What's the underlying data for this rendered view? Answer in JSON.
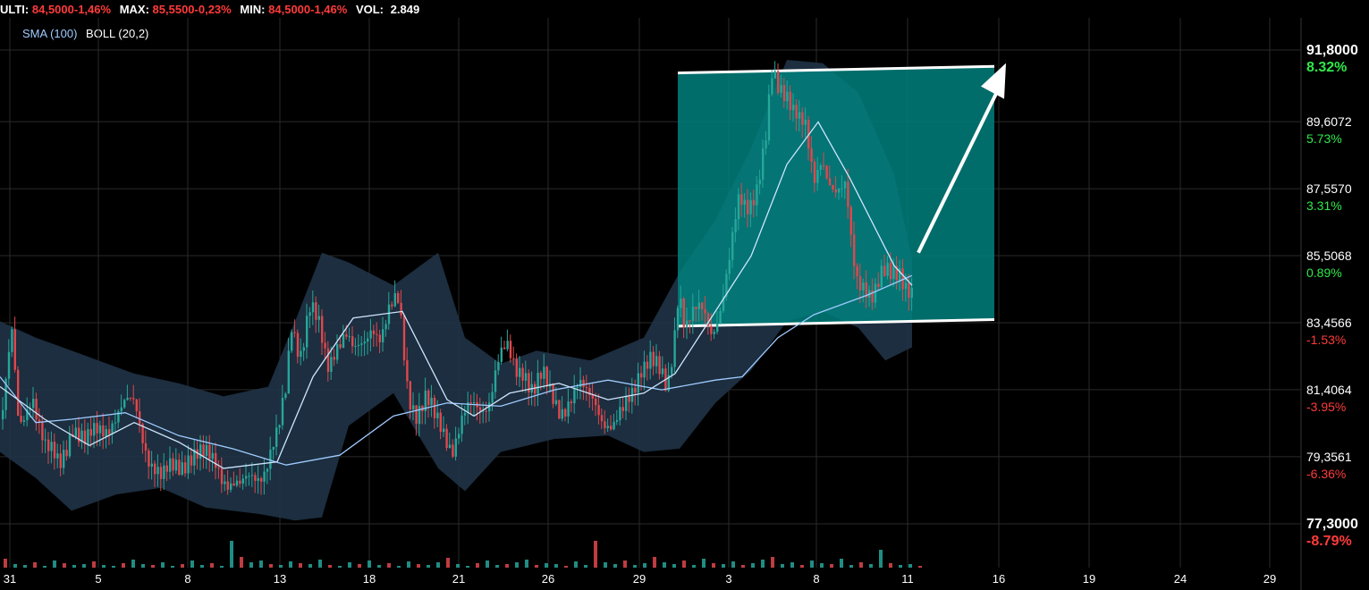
{
  "header": {
    "last_label": "ULTI:",
    "last_value": "84,5000-1,46%",
    "max_label": "MAX:",
    "max_value": "85,5500-0,23%",
    "min_label": "MIN:",
    "min_value": "84,5000-1,46%",
    "vol_label": "VOL:",
    "vol_value": "2.849"
  },
  "indicators": {
    "sma": "SMA (100)",
    "boll": "BOLL (20,2)"
  },
  "colors": {
    "background": "#000000",
    "grid": "#2a2a2a",
    "up": "#26a69a",
    "down": "#e0474c",
    "band": "#1f3346",
    "line": "#cfe6ff",
    "highlight": "#00807e",
    "pos_text": "#2ee84a",
    "neg_text": "#ff3b3b"
  },
  "chart_data": {
    "type": "candlestick",
    "ylim": [
      77.3,
      91.8
    ],
    "y_ticks": [
      {
        "price": "91,8000",
        "pct": "8.32%",
        "value": 91.8,
        "sign": "pos",
        "bold": true
      },
      {
        "price": "89,6072",
        "pct": "5.73%",
        "value": 89.6072,
        "sign": "pos",
        "bold": false
      },
      {
        "price": "87,5570",
        "pct": "3.31%",
        "value": 87.557,
        "sign": "pos",
        "bold": false
      },
      {
        "price": "85,5068",
        "pct": "0.89%",
        "value": 85.5068,
        "sign": "pos",
        "bold": false
      },
      {
        "price": "83,4566",
        "pct": "-1.53%",
        "value": 83.4566,
        "sign": "neg",
        "bold": false
      },
      {
        "price": "81,4064",
        "pct": "-3.95%",
        "value": 81.4064,
        "sign": "neg",
        "bold": false
      },
      {
        "price": "79,3561",
        "pct": "-6.36%",
        "value": 79.3561,
        "sign": "neg",
        "bold": false
      },
      {
        "price": "77,3000",
        "pct": "-8.79%",
        "value": 77.3,
        "sign": "neg",
        "bold": true
      }
    ],
    "x_ticks": [
      "31",
      "5",
      "8",
      "13",
      "18",
      "21",
      "26",
      "29",
      "3",
      "8",
      "11",
      "16",
      "19",
      "24",
      "29"
    ],
    "price_path": [
      [
        0,
        80.5
      ],
      [
        12,
        83.0
      ],
      [
        20,
        80.0
      ],
      [
        35,
        81.5
      ],
      [
        50,
        79.5
      ],
      [
        65,
        79.0
      ],
      [
        80,
        80.5
      ],
      [
        95,
        79.6
      ],
      [
        110,
        80.2
      ],
      [
        125,
        80.6
      ],
      [
        140,
        80.8
      ],
      [
        150,
        80.9
      ],
      [
        165,
        79.5
      ],
      [
        180,
        78.5
      ],
      [
        195,
        79.1
      ],
      [
        210,
        79.5
      ],
      [
        225,
        79.2
      ],
      [
        240,
        79.3
      ],
      [
        255,
        78.6
      ],
      [
        268,
        78.2
      ],
      [
        280,
        78.8
      ],
      [
        295,
        79.1
      ],
      [
        310,
        79.9
      ],
      [
        318,
        81.2
      ],
      [
        325,
        83.5
      ],
      [
        335,
        82.7
      ],
      [
        345,
        83.9
      ],
      [
        355,
        83.2
      ],
      [
        365,
        82.1
      ],
      [
        375,
        83.0
      ],
      [
        385,
        83.2
      ],
      [
        395,
        82.3
      ],
      [
        405,
        82.7
      ],
      [
        415,
        83.6
      ],
      [
        425,
        83.1
      ],
      [
        435,
        83.7
      ],
      [
        445,
        84.0
      ],
      [
        455,
        81.5
      ],
      [
        465,
        80.8
      ],
      [
        475,
        81.0
      ],
      [
        485,
        80.4
      ],
      [
        495,
        80.2
      ],
      [
        505,
        79.8
      ],
      [
        515,
        80.4
      ],
      [
        525,
        80.7
      ],
      [
        535,
        80.8
      ],
      [
        545,
        81.2
      ],
      [
        555,
        82.3
      ],
      [
        565,
        82.5
      ],
      [
        575,
        81.9
      ],
      [
        585,
        82.2
      ],
      [
        595,
        81.5
      ],
      [
        605,
        81.7
      ],
      [
        615,
        81.1
      ],
      [
        625,
        80.9
      ],
      [
        635,
        81.2
      ],
      [
        645,
        81.4
      ],
      [
        655,
        81.1
      ],
      [
        665,
        81.1
      ],
      [
        675,
        80.6
      ],
      [
        685,
        80.2
      ],
      [
        695,
        80.5
      ],
      [
        705,
        81.3
      ],
      [
        715,
        82.3
      ],
      [
        725,
        82.4
      ],
      [
        735,
        81.8
      ],
      [
        745,
        81.3
      ],
      [
        752,
        82.9
      ],
      [
        758,
        84.8
      ],
      [
        765,
        83.4
      ],
      [
        775,
        83.6
      ],
      [
        785,
        83.7
      ],
      [
        795,
        83.3
      ],
      [
        805,
        84.1
      ],
      [
        815,
        85.3
      ],
      [
        825,
        87.0
      ],
      [
        835,
        87.1
      ],
      [
        845,
        87.8
      ],
      [
        855,
        89.0
      ],
      [
        862,
        90.8
      ],
      [
        870,
        90.4
      ],
      [
        880,
        90.6
      ],
      [
        890,
        90.1
      ],
      [
        900,
        89.3
      ],
      [
        905,
        88.1
      ],
      [
        910,
        87.5
      ],
      [
        918,
        88.5
      ],
      [
        925,
        88.1
      ],
      [
        935,
        87.6
      ],
      [
        945,
        87.4
      ],
      [
        952,
        85.3
      ],
      [
        958,
        84.6
      ],
      [
        965,
        84.8
      ],
      [
        975,
        84.5
      ],
      [
        985,
        84.8
      ],
      [
        995,
        84.7
      ],
      [
        1005,
        85.1
      ],
      [
        1013,
        84.8
      ],
      [
        1020,
        84.5
      ]
    ],
    "sma_path": [
      [
        0,
        81.8
      ],
      [
        40,
        80.4
      ],
      [
        80,
        80.5
      ],
      [
        140,
        80.7
      ],
      [
        200,
        80.0
      ],
      [
        260,
        79.6
      ],
      [
        320,
        79.1
      ],
      [
        380,
        79.4
      ],
      [
        440,
        80.6
      ],
      [
        500,
        81.0
      ],
      [
        560,
        80.9
      ],
      [
        620,
        81.4
      ],
      [
        680,
        81.7
      ],
      [
        740,
        81.4
      ],
      [
        800,
        81.7
      ],
      [
        830,
        81.8
      ],
      [
        870,
        83.0
      ],
      [
        910,
        83.7
      ],
      [
        970,
        84.3
      ],
      [
        1020,
        84.9
      ]
    ],
    "boll_path": [
      [
        0,
        81.5
      ],
      [
        50,
        80.5
      ],
      [
        100,
        79.7
      ],
      [
        150,
        80.4
      ],
      [
        200,
        79.8
      ],
      [
        250,
        79.0
      ],
      [
        310,
        79.2
      ],
      [
        350,
        81.8
      ],
      [
        395,
        83.6
      ],
      [
        450,
        83.8
      ],
      [
        500,
        81.1
      ],
      [
        530,
        80.6
      ],
      [
        570,
        81.3
      ],
      [
        625,
        81.6
      ],
      [
        680,
        81.1
      ],
      [
        720,
        81.3
      ],
      [
        755,
        81.9
      ],
      [
        800,
        83.8
      ],
      [
        840,
        85.5
      ],
      [
        880,
        88.3
      ],
      [
        915,
        89.6
      ],
      [
        950,
        87.9
      ],
      [
        1000,
        85.2
      ],
      [
        1020,
        84.6
      ]
    ],
    "boll_upper": [
      [
        0,
        83.5
      ],
      [
        40,
        83.0
      ],
      [
        90,
        82.5
      ],
      [
        150,
        81.9
      ],
      [
        200,
        81.6
      ],
      [
        250,
        81.2
      ],
      [
        300,
        81.5
      ],
      [
        330,
        83.5
      ],
      [
        360,
        85.6
      ],
      [
        390,
        85.3
      ],
      [
        440,
        84.6
      ],
      [
        490,
        85.6
      ],
      [
        520,
        83.0
      ],
      [
        560,
        82.2
      ],
      [
        600,
        82.6
      ],
      [
        660,
        82.3
      ],
      [
        720,
        83.0
      ],
      [
        760,
        85.0
      ],
      [
        800,
        86.6
      ],
      [
        840,
        88.8
      ],
      [
        880,
        91.5
      ],
      [
        920,
        91.4
      ],
      [
        960,
        90.5
      ],
      [
        1000,
        88.0
      ],
      [
        1020,
        85.4
      ]
    ],
    "boll_lower": [
      [
        0,
        79.5
      ],
      [
        40,
        78.7
      ],
      [
        80,
        77.7
      ],
      [
        130,
        78.2
      ],
      [
        180,
        78.4
      ],
      [
        230,
        77.8
      ],
      [
        290,
        77.6
      ],
      [
        330,
        77.4
      ],
      [
        360,
        77.5
      ],
      [
        390,
        80.3
      ],
      [
        440,
        81.3
      ],
      [
        490,
        79.0
      ],
      [
        520,
        78.3
      ],
      [
        560,
        79.5
      ],
      [
        620,
        79.9
      ],
      [
        680,
        80.0
      ],
      [
        720,
        79.5
      ],
      [
        760,
        79.6
      ],
      [
        800,
        81.0
      ],
      [
        840,
        82.0
      ],
      [
        880,
        83.5
      ],
      [
        920,
        83.8
      ],
      [
        960,
        83.3
      ],
      [
        990,
        82.3
      ],
      [
        1020,
        82.7
      ]
    ],
    "volume_heights": [
      10,
      4,
      3,
      6,
      2,
      8,
      5,
      3,
      4,
      7,
      3,
      2,
      5,
      9,
      4,
      3,
      6,
      2,
      4,
      8,
      3,
      5,
      2,
      30,
      12,
      6,
      8,
      4,
      3,
      7,
      5,
      4,
      9,
      3,
      2,
      6,
      4,
      8,
      3,
      5,
      2,
      7,
      4,
      3,
      6,
      11,
      4,
      2,
      5,
      8,
      3,
      4,
      6,
      9,
      3,
      5,
      4,
      2,
      7,
      3,
      30,
      6,
      4,
      8,
      3,
      5,
      12,
      6,
      4,
      8,
      3,
      10,
      5,
      4,
      7,
      3,
      5,
      9,
      12,
      4,
      6,
      3,
      8,
      5,
      4,
      10,
      3,
      6,
      4,
      20,
      5,
      3,
      4,
      2
    ],
    "trend_channel": {
      "top_start": [
        758,
        91.1
      ],
      "top_end": [
        1112,
        91.3
      ],
      "bottom_start": [
        758,
        83.35
      ],
      "bottom_end": [
        1112,
        83.55
      ]
    },
    "arrow": {
      "from": [
        1027,
        85.6
      ],
      "to": [
        1125,
        91.4
      ]
    }
  }
}
